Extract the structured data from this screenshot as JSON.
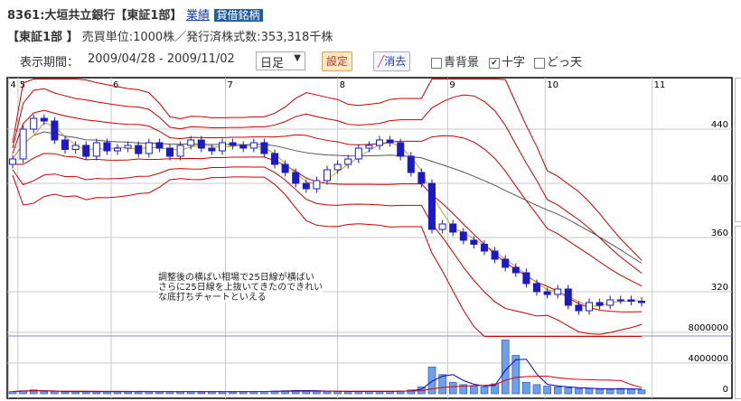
{
  "header": {
    "code": "8361",
    "name": "大垣共立銀行【東証1部】",
    "link_label": "業績",
    "badge": "貸借銘柄"
  },
  "info": {
    "market": "【東証1部 】",
    "text": "売買単位:1000株／発行済株式数:353,318千株"
  },
  "controls": {
    "period_label": "表示期間：",
    "period": "2009/04/28 - 2009/11/02",
    "interval": "日足",
    "set_label": "設定",
    "erase_label": "消去",
    "options": [
      {
        "label": "青背景",
        "checked": false
      },
      {
        "label": "十字",
        "checked": true
      },
      {
        "label": "どっ天",
        "checked": false
      }
    ]
  },
  "annotation": [
    "調整後の横ばい相場で25日線が横ばい",
    "さらに25日線を上抜いてきたのできれい",
    "な底打ちチャートといえる"
  ],
  "chart_data": {
    "type": "candlestick",
    "price_ticks": [
      440,
      400,
      360,
      320
    ],
    "price_range": [
      287,
      477
    ],
    "volume_ticks": [
      "8000000",
      "4000000",
      "0"
    ],
    "volume_range": [
      0,
      8500000
    ],
    "month_ticks": [
      {
        "label": "4",
        "i": -0.4
      },
      {
        "label": "5",
        "i": 0.5
      },
      {
        "label": "6",
        "i": 9.4
      },
      {
        "label": "7",
        "i": 20.3
      },
      {
        "label": "8",
        "i": 31
      },
      {
        "label": "9",
        "i": 41.5
      },
      {
        "label": "10",
        "i": 50.8
      },
      {
        "label": "11",
        "i": 61
      }
    ],
    "close": [
      418,
      440,
      448,
      446,
      432,
      425,
      428,
      420,
      430,
      424,
      426,
      428,
      422,
      430,
      426,
      420,
      428,
      432,
      426,
      424,
      430,
      428,
      426,
      430,
      422,
      414,
      408,
      400,
      396,
      402,
      410,
      414,
      418,
      426,
      428,
      432,
      430,
      420,
      408,
      400,
      366,
      370,
      364,
      358,
      355,
      350,
      344,
      338,
      334,
      326,
      320,
      318,
      322,
      310,
      306,
      312,
      310,
      314,
      314,
      313,
      312
    ],
    "volume": [
      300000,
      400000,
      500000,
      300000,
      300000,
      250000,
      300000,
      300000,
      250000,
      300000,
      300000,
      250000,
      300000,
      300000,
      250000,
      300000,
      300000,
      300000,
      250000,
      300000,
      300000,
      250000,
      300000,
      300000,
      300000,
      350000,
      400000,
      450000,
      400000,
      350000,
      300000,
      300000,
      300000,
      300000,
      300000,
      300000,
      300000,
      350000,
      500000,
      900000,
      3500000,
      2500000,
      1500000,
      1200000,
      1000000,
      900000,
      1300000,
      7000000,
      5000000,
      1500000,
      1200000,
      1000000,
      900000,
      800000,
      700000,
      700000,
      600000,
      600000,
      700000,
      600000,
      500000
    ],
    "colors": {
      "candle": "#1a1acc",
      "bands": "#cc0000",
      "ma_short": "#c8a020",
      "ma_long": "#555555",
      "vol_ma_short": "#0000cc",
      "vol_ma_long": "#dd0000"
    }
  }
}
